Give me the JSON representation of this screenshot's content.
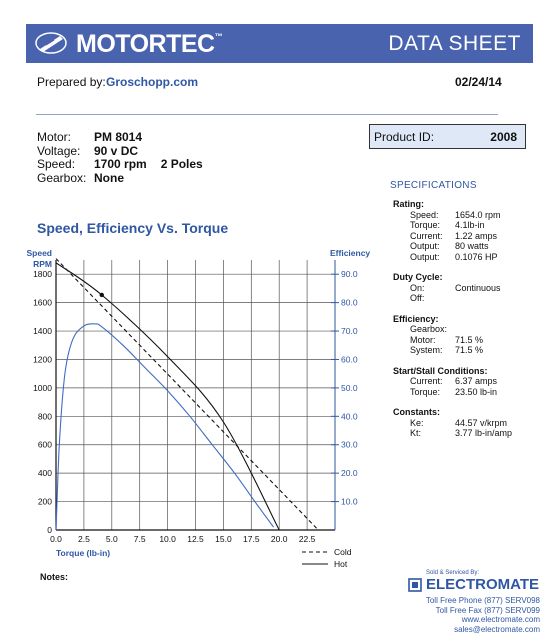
{
  "header": {
    "brand": "MOTORTEC",
    "trademark": "™",
    "doc_type": "DATA SHEET",
    "colors": {
      "banner": "#4a63ae",
      "accent": "#2f57a3"
    }
  },
  "prepared": {
    "label": "Prepared by:",
    "value": "Groschopp.com",
    "date": "02/24/14"
  },
  "motor_info": [
    {
      "key": "Motor:",
      "value": "PM  8014",
      "extra": ""
    },
    {
      "key": "Voltage:",
      "value": "90 v DC",
      "extra": ""
    },
    {
      "key": "Speed:",
      "value": "1700 rpm",
      "extra": "2 Poles"
    },
    {
      "key": "Gearbox:",
      "value": "None",
      "extra": ""
    }
  ],
  "product_id": {
    "label": "Product ID:",
    "value": "2008"
  },
  "specifications": {
    "title": "SPECIFICATIONS",
    "rating": {
      "label": "Rating:",
      "rows": [
        {
          "key": "Speed:",
          "value": "1654.0 rpm"
        },
        {
          "key": "Torque:",
          "value": "4.1lb-in"
        },
        {
          "key": "Current:",
          "value": "1.22 amps"
        },
        {
          "key": "Output:",
          "value": "80 watts"
        },
        {
          "key": "Output:",
          "value": "0.1076 HP"
        }
      ]
    },
    "duty": {
      "label": "Duty Cycle:",
      "rows": [
        {
          "key": "On:",
          "value": "Continuous"
        },
        {
          "key": "Off:",
          "value": ""
        }
      ]
    },
    "efficiency": {
      "label": "Efficiency:",
      "rows": [
        {
          "key": "Gearbox:",
          "value": ""
        },
        {
          "key": "Motor:",
          "value": "71.5 %"
        },
        {
          "key": "System:",
          "value": "71.5 %"
        }
      ]
    },
    "stall": {
      "label": "Start/Stall Conditions:",
      "rows": [
        {
          "key": "Current:",
          "value": "6.37 amps"
        },
        {
          "key": "Torque:",
          "value": "23.50 lb-in"
        }
      ]
    },
    "constants": {
      "label": "Constants:",
      "rows": [
        {
          "key": "Ke:",
          "value": "44.57 v/krpm"
        },
        {
          "key": "Kt:",
          "value": "3.77 lb-in/amp"
        }
      ]
    }
  },
  "chart_title": "Speed, Efficiency Vs. Torque",
  "chart_data": {
    "type": "line",
    "title": "Speed, Efficiency Vs. Torque",
    "xlabel": "Torque  (lb-in)",
    "ylabel_left": "Speed RPM",
    "ylabel_right": "Efficiency",
    "xlim": [
      0,
      25
    ],
    "ylim_left": [
      0,
      1900
    ],
    "ylim_right": [
      0,
      95
    ],
    "x_ticks": [
      "0.0",
      "2.5",
      "5.0",
      "7.5",
      "10.0",
      "12.5",
      "15.0",
      "17.5",
      "20.0",
      "22.5"
    ],
    "y_left_ticks": [
      "0",
      "200",
      "400",
      "600",
      "800",
      "1000",
      "1200",
      "1400",
      "1600",
      "1800"
    ],
    "y_right_ticks": [
      "10.0",
      "20.0",
      "30.0",
      "40.0",
      "50.0",
      "60.0",
      "70.0",
      "80.0",
      "90.0"
    ],
    "grid": true,
    "legend_position": "bottom-right",
    "legend": [
      {
        "name": "Cold",
        "style": "dashed"
      },
      {
        "name": "Hot",
        "style": "solid"
      }
    ],
    "series": [
      {
        "name": "Cold",
        "axis": "left",
        "color": "#111111",
        "style": "dashed",
        "x": [
          0,
          23.5
        ],
        "y": [
          1910,
          0
        ]
      },
      {
        "name": "Hot",
        "axis": "left",
        "color": "#111111",
        "style": "solid",
        "x": [
          0,
          4.1,
          10,
          15,
          20
        ],
        "y": [
          1880,
          1654,
          1220,
          760,
          0
        ]
      },
      {
        "name": "Efficiency",
        "axis": "right",
        "color": "#3f6cc4",
        "style": "solid",
        "x": [
          0,
          0.3,
          0.8,
          1.5,
          2.5,
          3.5,
          4.1,
          6,
          8,
          10,
          12,
          14,
          16,
          18,
          19.5
        ],
        "y": [
          0,
          30,
          55,
          67,
          71.8,
          72.5,
          71.5,
          65,
          57,
          49,
          40,
          30,
          20,
          9,
          1
        ]
      }
    ],
    "markers": [
      {
        "series": "Hot",
        "x": 4.1,
        "y": 1654
      }
    ]
  },
  "notes_label": "Notes:",
  "footer": {
    "sold_by": "Sold & Serviced By:",
    "company": "ELECTROMATE",
    "lines": [
      "Toll Free Phone  (877) SERV098",
      "Toll Free Fax  (877) SERV099",
      "www.electromate.com",
      "sales@electromate.com"
    ]
  }
}
